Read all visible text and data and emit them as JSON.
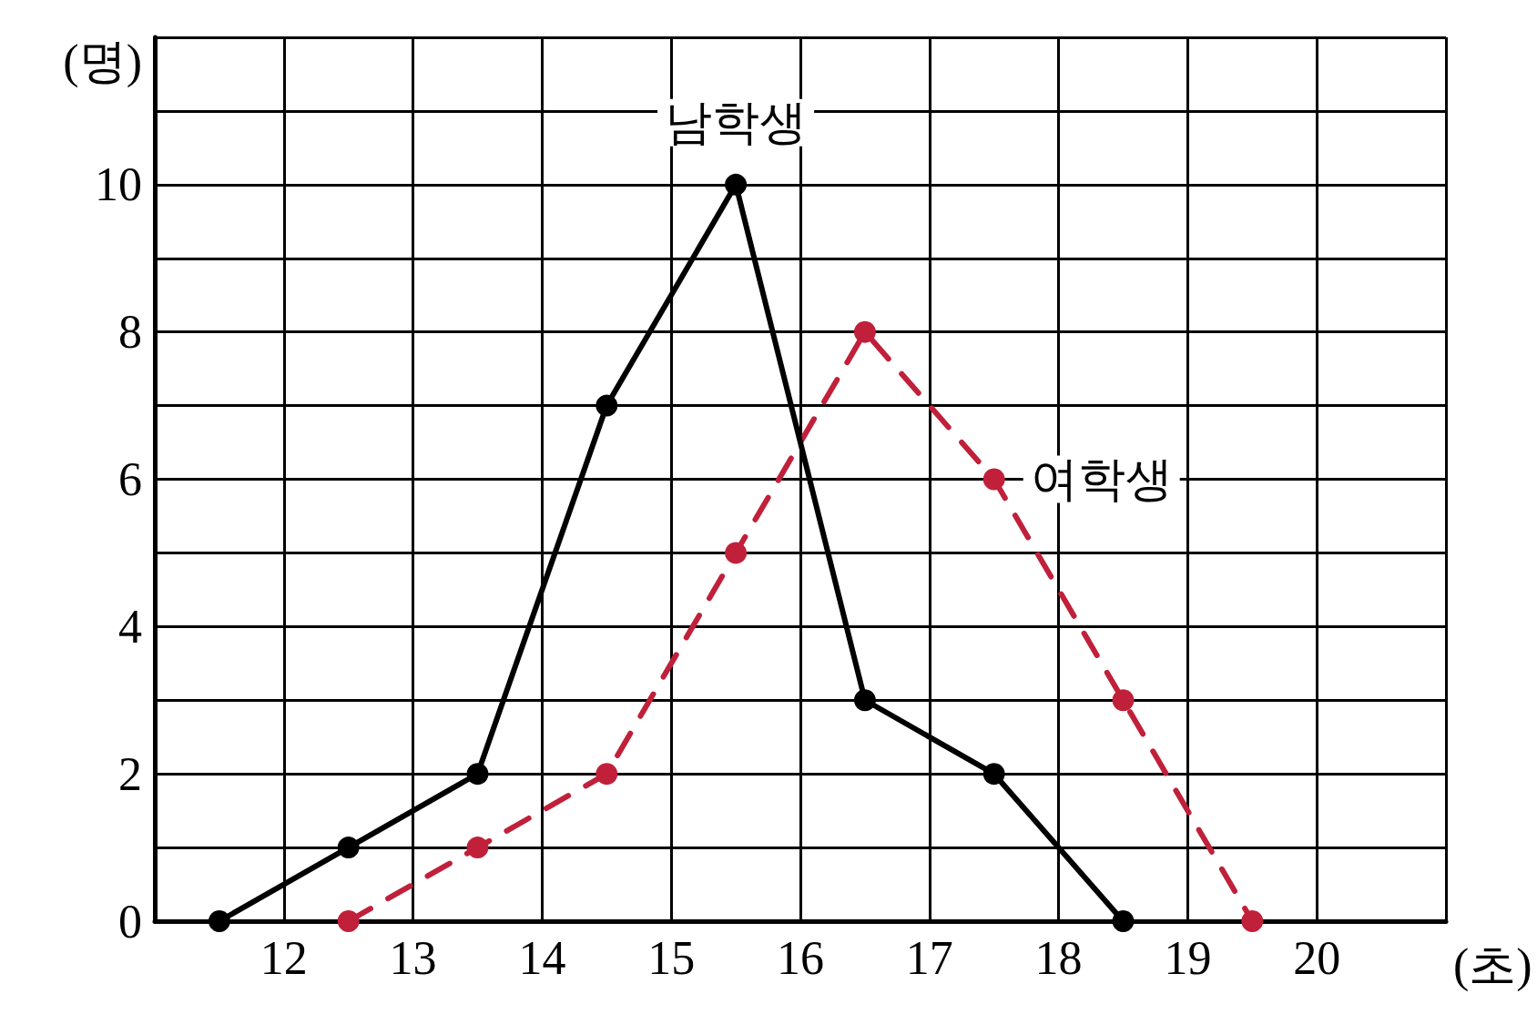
{
  "chart_data": {
    "type": "line",
    "xlabel": "(초)",
    "ylabel": "(명)",
    "xlim": [
      11,
      21
    ],
    "xticks": [
      {
        "value": 11,
        "label": null
      },
      12,
      13,
      14,
      15,
      16,
      17,
      18,
      19,
      20,
      {
        "value": 21,
        "label": null
      }
    ],
    "ylim": [
      0,
      12
    ],
    "yticks": [
      0,
      {
        "value": 1,
        "label": null
      },
      2,
      {
        "value": 3,
        "label": null
      },
      4,
      {
        "value": 5,
        "label": null
      },
      6,
      {
        "value": 7,
        "label": null
      },
      8,
      {
        "value": 9,
        "label": null
      },
      10,
      {
        "value": 11,
        "label": null
      },
      {
        "value": 12,
        "label": null
      }
    ],
    "grid": true,
    "marker": "circle",
    "series": [
      {
        "name": "남학생",
        "color": "#000000",
        "line_style": "solid",
        "x": [
          11.5,
          12.5,
          13.5,
          14.5,
          15.5,
          16.5,
          17.5,
          18.5
        ],
        "values": [
          0,
          1,
          2,
          7,
          10,
          3,
          2,
          0
        ]
      },
      {
        "name": "여학생",
        "color": "#c0203a",
        "line_style": "dashed",
        "x": [
          12.5,
          13.5,
          14.5,
          15.5,
          16.5,
          17.5,
          18.5,
          19.5
        ],
        "values": [
          0,
          1,
          2,
          5,
          8,
          6,
          3,
          0
        ]
      }
    ]
  }
}
